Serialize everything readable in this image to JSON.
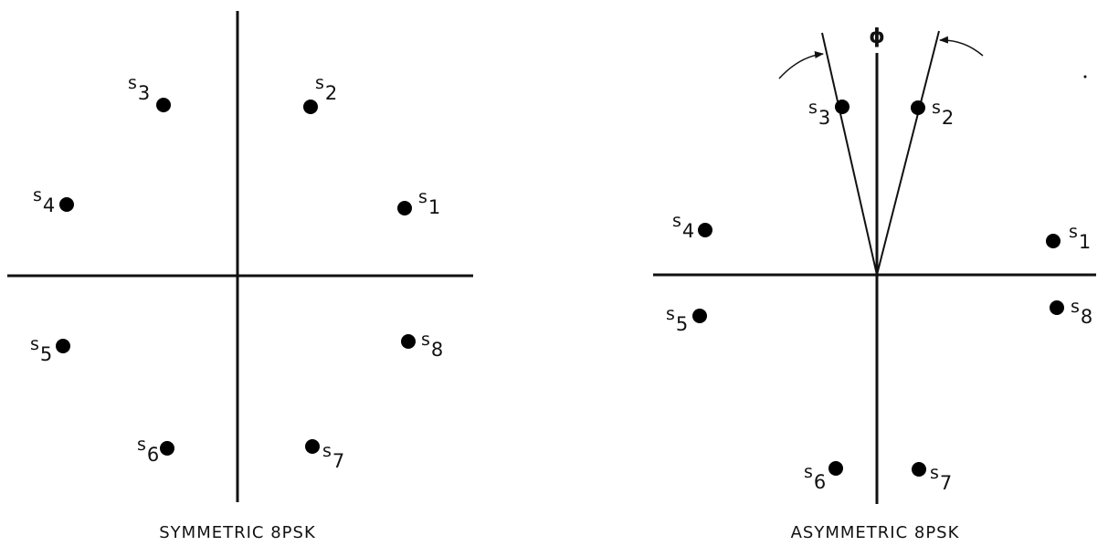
{
  "diagrams": {
    "symmetric": {
      "caption": "SYMMETRIC 8PSK",
      "points": [
        {
          "letter": "s",
          "sub": "1"
        },
        {
          "letter": "s",
          "sub": "2"
        },
        {
          "letter": "s",
          "sub": "3"
        },
        {
          "letter": "s",
          "sub": "4"
        },
        {
          "letter": "s",
          "sub": "5"
        },
        {
          "letter": "s",
          "sub": "6"
        },
        {
          "letter": "s",
          "sub": "7"
        },
        {
          "letter": "s",
          "sub": "8"
        }
      ]
    },
    "asymmetric": {
      "caption": "ASYMMETRIC 8PSK",
      "angle_label": "ϕ",
      "points": [
        {
          "letter": "s",
          "sub": "1"
        },
        {
          "letter": "s",
          "sub": "2"
        },
        {
          "letter": "s",
          "sub": "3"
        },
        {
          "letter": "s",
          "sub": "4"
        },
        {
          "letter": "s",
          "sub": "5"
        },
        {
          "letter": "s",
          "sub": "6"
        },
        {
          "letter": "s",
          "sub": "7"
        },
        {
          "letter": "s",
          "sub": "8"
        }
      ]
    }
  }
}
